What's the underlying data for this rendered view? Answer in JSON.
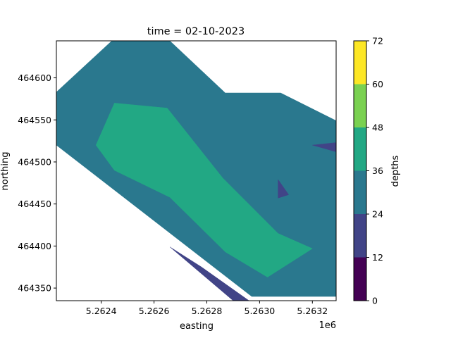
{
  "chart_data": {
    "type": "contourf",
    "title": "time = 02-10-2023",
    "xlabel": "easting",
    "ylabel": "northing",
    "x_offset_label": "1e6",
    "xlim": [
      5.26223,
      5.26329
    ],
    "ylim": [
      464335,
      464644
    ],
    "xticks": [
      5.2624,
      5.2626,
      5.2628,
      5.263,
      5.2632
    ],
    "xtick_labels": [
      "5.2624",
      "5.2626",
      "5.2628",
      "5.2630",
      "5.2632"
    ],
    "yticks": [
      464350,
      464400,
      464450,
      464500,
      464550,
      464600
    ],
    "ytick_labels": [
      "464350",
      "464400",
      "464450",
      "464500",
      "464550",
      "464600"
    ],
    "colorbar": {
      "label": "depths",
      "levels": [
        0,
        12,
        24,
        36,
        48,
        60,
        72
      ],
      "tick_labels": [
        "0",
        "12",
        "24",
        "36",
        "48",
        "60",
        "72"
      ],
      "colors": [
        "#440154",
        "#414487",
        "#2a788e",
        "#22a884",
        "#7ad151",
        "#fde725"
      ]
    },
    "regions": [
      {
        "level_range": [
          24,
          36
        ],
        "color": "#2a788e",
        "points": [
          [
            5.26223,
            464583
          ],
          [
            5.26244,
            464644
          ],
          [
            5.26266,
            464644
          ],
          [
            5.26287,
            464582
          ],
          [
            5.26308,
            464582
          ],
          [
            5.26329,
            464549
          ],
          [
            5.26329,
            464523
          ],
          [
            5.2632,
            464520
          ],
          [
            5.26329,
            464512
          ],
          [
            5.26329,
            464340
          ],
          [
            5.26297,
            464340
          ],
          [
            5.26223,
            464520
          ]
        ]
      },
      {
        "level_range": [
          12,
          24
        ],
        "color": "#414487",
        "points": [
          [
            5.2632,
            464520
          ],
          [
            5.26329,
            464523
          ],
          [
            5.26329,
            464512
          ]
        ]
      },
      {
        "level_range": [
          12,
          24
        ],
        "color": "#414487",
        "points": [
          [
            5.26307,
            464479
          ],
          [
            5.26311,
            464461
          ],
          [
            5.26307,
            464457
          ]
        ]
      },
      {
        "level_range": [
          12,
          24
        ],
        "color": "#414487",
        "points": [
          [
            5.26266,
            464399
          ],
          [
            5.2629,
            464335
          ],
          [
            5.26296,
            464335
          ],
          [
            5.26278,
            464375
          ]
        ]
      },
      {
        "level_range": [
          36,
          48
        ],
        "color": "#22a884",
        "points": [
          [
            5.26245,
            464570
          ],
          [
            5.26265,
            464564
          ],
          [
            5.26286,
            464481
          ],
          [
            5.26307,
            464415
          ],
          [
            5.2632,
            464397
          ],
          [
            5.26303,
            464363
          ],
          [
            5.26287,
            464393
          ],
          [
            5.26266,
            464458
          ],
          [
            5.26245,
            464490
          ],
          [
            5.26238,
            464520
          ]
        ]
      }
    ]
  }
}
